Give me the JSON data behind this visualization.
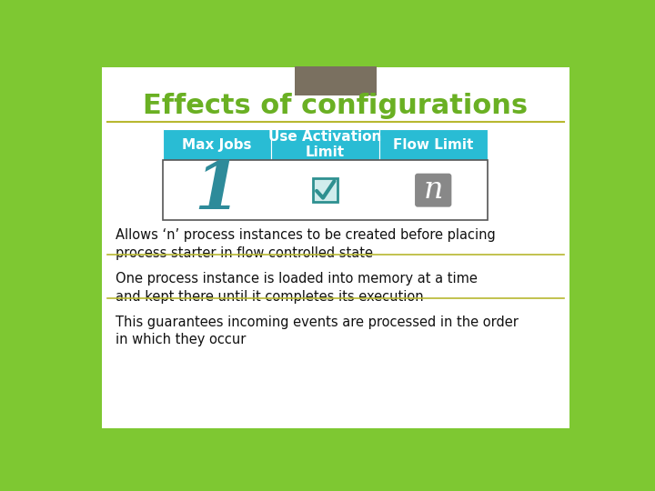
{
  "title": "Effects of configurations",
  "title_color": "#6ab023",
  "title_fontsize": 22,
  "background_outer": "#7ec832",
  "background_inner": "#ffffff",
  "background_rect_top": "#7a7060",
  "header_bg": "#29bcd4",
  "header_labels": [
    "Max Jobs",
    "Use Activation\nLimit",
    "Flow Limit"
  ],
  "header_text_color": "#ffffff",
  "header_fontsize": 11,
  "table_border_color": "#555555",
  "icon_1_color": "#2e8b9a",
  "icon_n_bg": "#888888",
  "icon_n_text": "#ffffff",
  "icon_check_color": "#2e9090",
  "bullet_texts": [
    "Allows ‘n’ process instances to be created before placing\nprocess starter in flow controlled state",
    "One process instance is loaded into memory at a time\nand kept there until it completes its execution",
    "This guarantees incoming events are processed in the order\nin which they occur"
  ],
  "bullet_text_color": "#111111",
  "bullet_fontsize": 10.5,
  "divider_color": "#b8b830"
}
